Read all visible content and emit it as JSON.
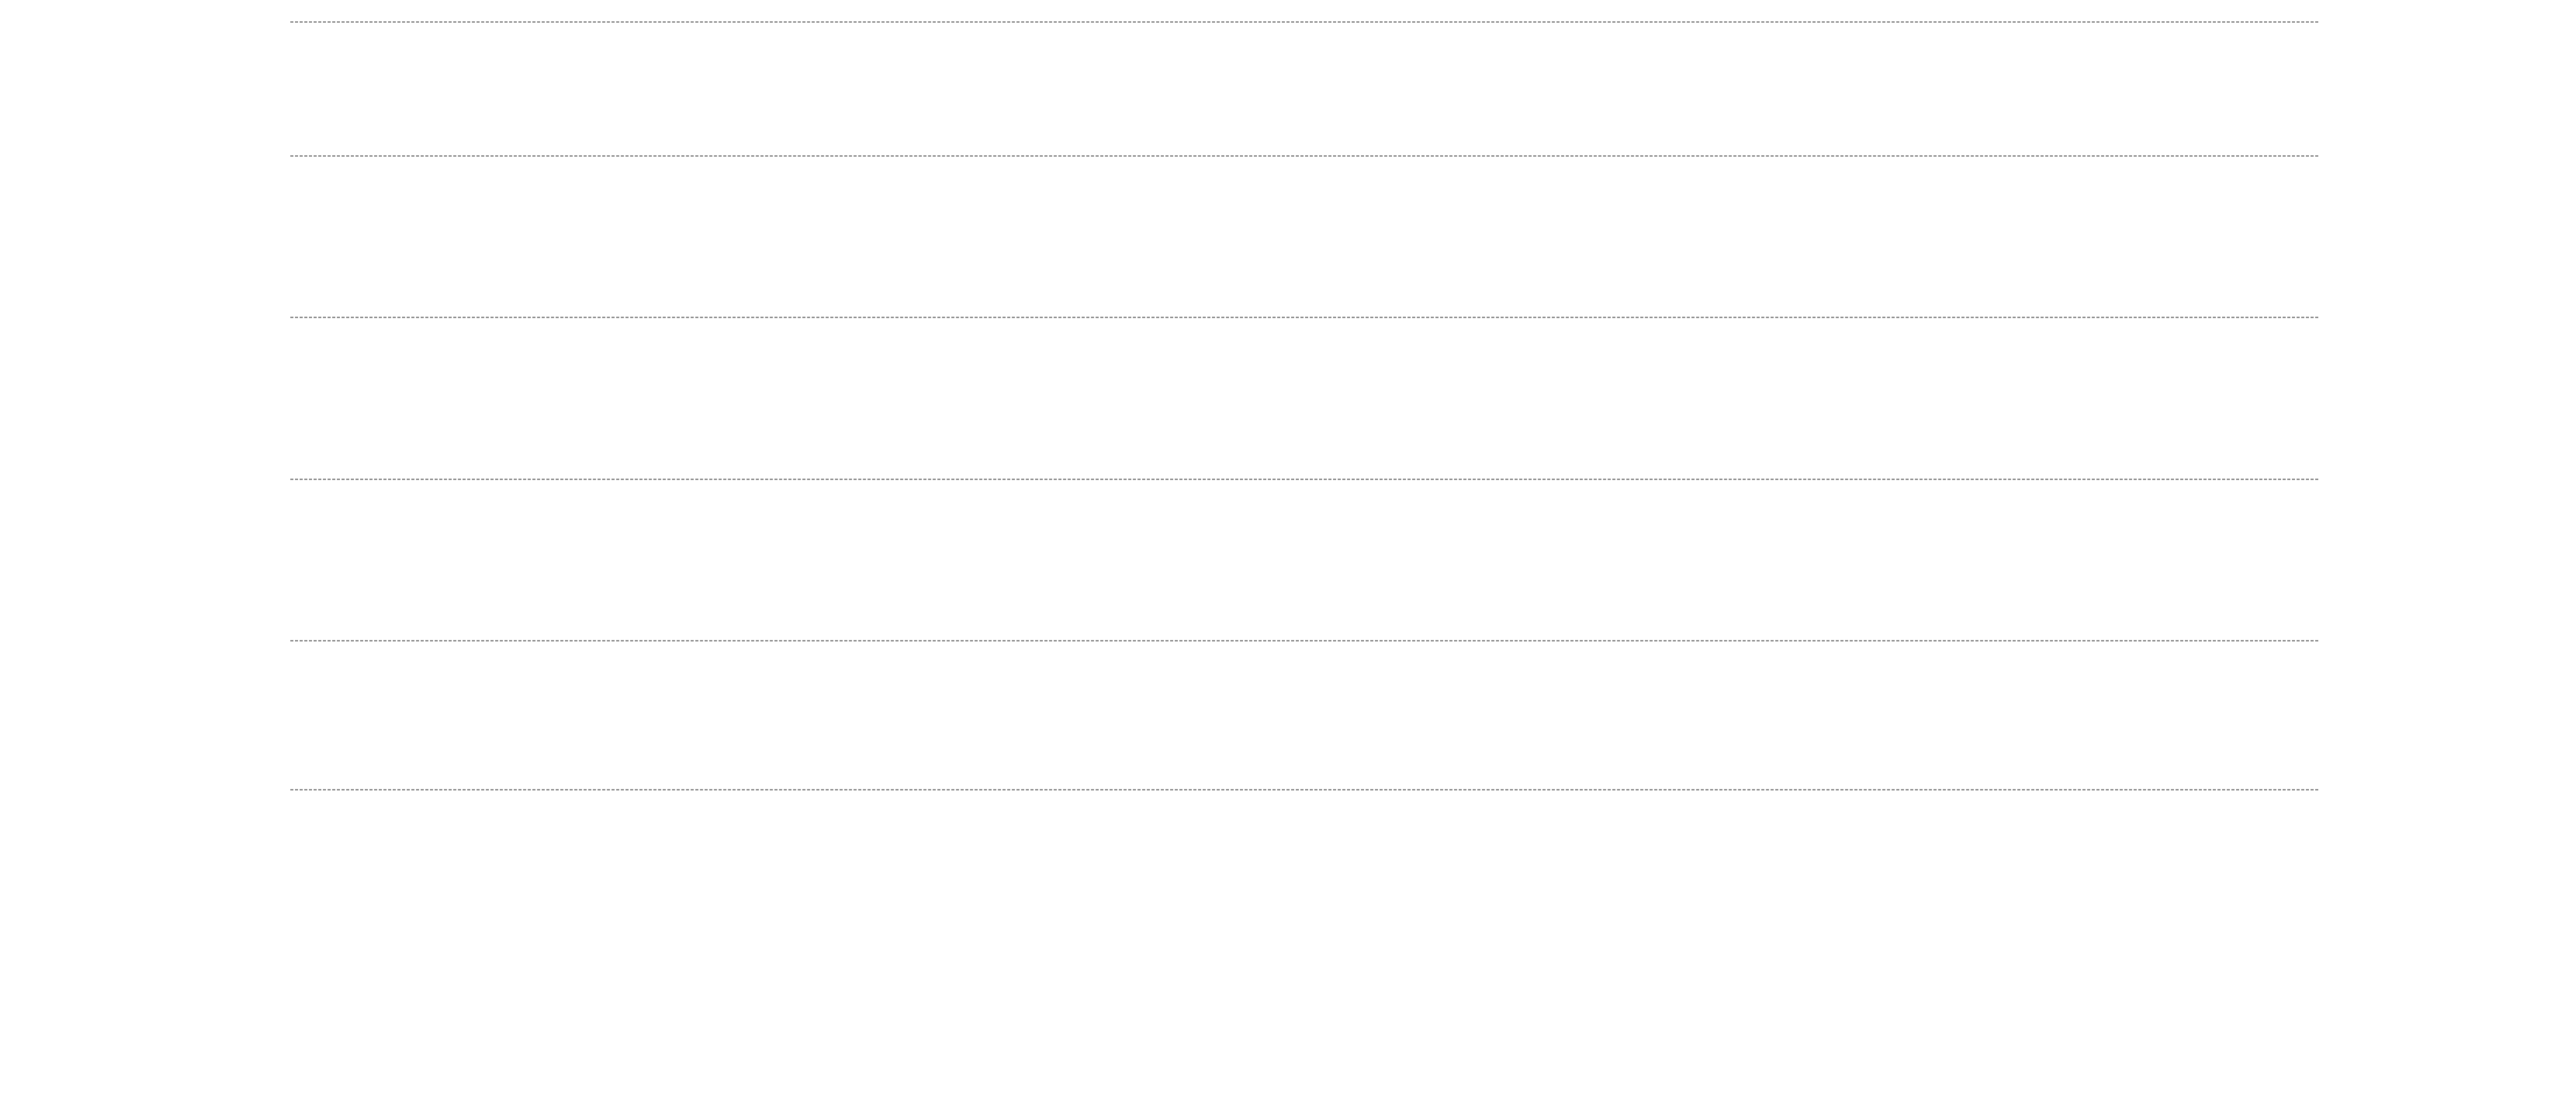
{
  "page": {
    "background_color": "#ffffff",
    "rule_color": "#9a9a9a",
    "rule_style": "dashed",
    "rule_count": 6,
    "visible_text": []
  }
}
